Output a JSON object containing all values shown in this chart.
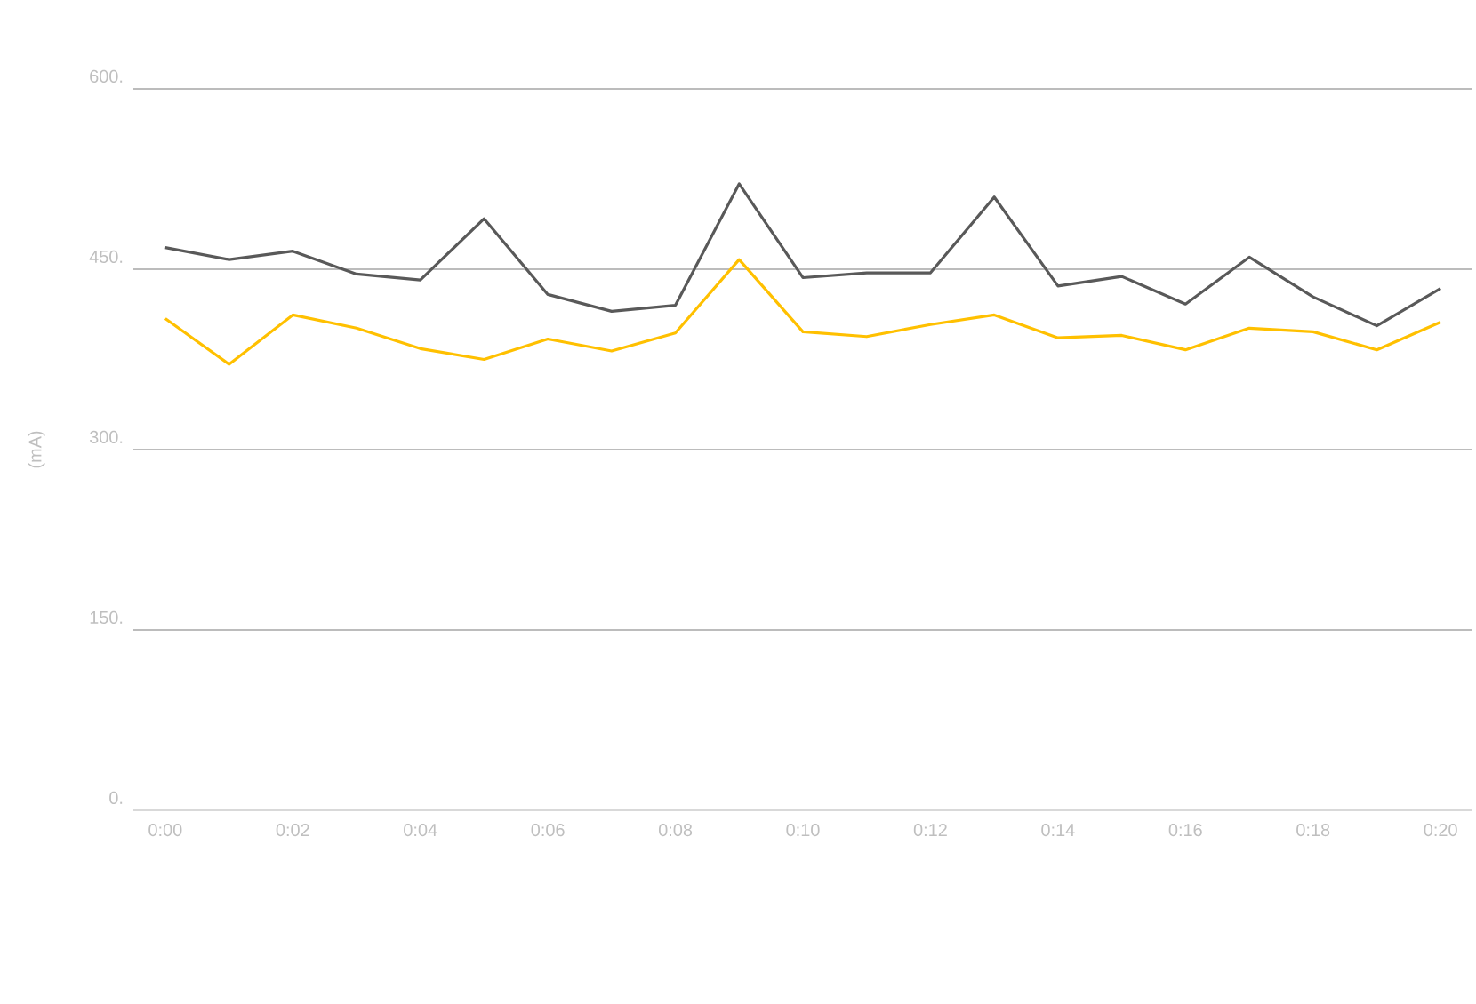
{
  "chart_data": {
    "type": "line",
    "ylabel": "(mA)",
    "categories": [
      "0:00",
      null,
      "0:02",
      null,
      "0:04",
      null,
      "0:06",
      null,
      "0:08",
      null,
      "0:10",
      null,
      "0:12",
      null,
      "0:14",
      null,
      "0:16",
      null,
      "0:18",
      null,
      "0:20"
    ],
    "series": [
      {
        "color": "#ffc000",
        "values": [
          409,
          371,
          412,
          401,
          384,
          375,
          392,
          382,
          397,
          458,
          398,
          394,
          404,
          412,
          393,
          395,
          383,
          401,
          398,
          383,
          406
        ]
      },
      {
        "color": "#595959",
        "values": [
          468,
          458,
          465,
          446,
          441,
          492,
          429,
          415,
          420,
          521,
          443,
          447,
          447,
          510,
          436,
          444,
          421,
          460,
          427,
          403,
          434
        ]
      }
    ],
    "ylim": [
      0,
      600
    ],
    "yticks": [
      {
        "value": 0,
        "label": "0."
      },
      {
        "value": 150,
        "label": "150."
      },
      {
        "value": 300,
        "label": "300."
      },
      {
        "value": 450,
        "label": "450."
      },
      {
        "value": 600,
        "label": "600."
      }
    ],
    "grid": "y",
    "marker": "none",
    "line_style": "solid"
  }
}
